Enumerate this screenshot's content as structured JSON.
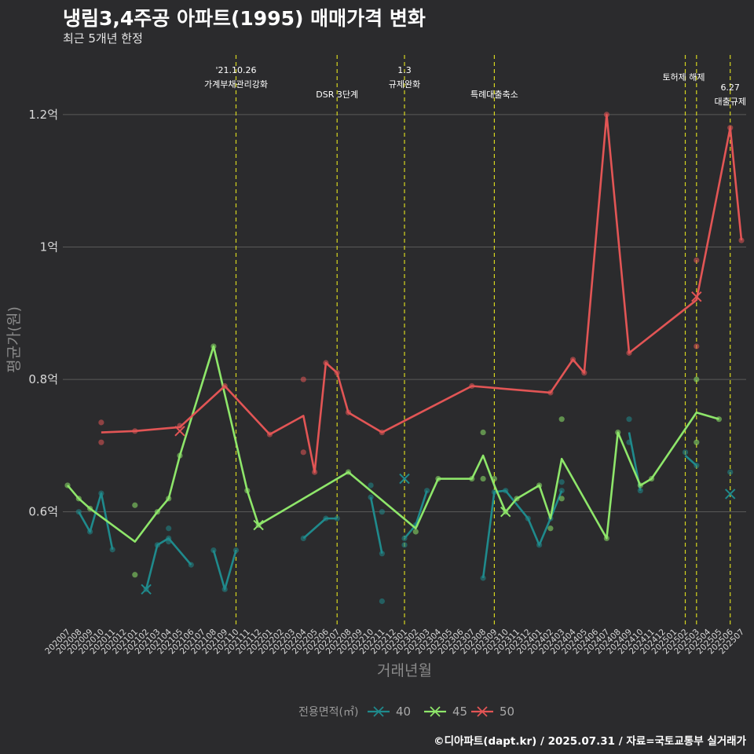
{
  "header": {
    "title": "냉림3,4주공 아파트(1995) 매매가격 변화",
    "subtitle": "최근 5개년 한정"
  },
  "caption": "©디아파트(dapt.kr) / 2025.07.31 / 자료=국토교통부 실거래가",
  "colors": {
    "background": "#2b2b2d",
    "grid": "#5a5a5a",
    "event_line": "#d6d61f",
    "s40": "#1f8a8c",
    "s45": "#8ee66a",
    "s50": "#e25555"
  },
  "chart_data": {
    "type": "line",
    "title": "냉림3,4주공 아파트(1995) 매매가격 변화",
    "subtitle": "최근 5개년 한정",
    "xlabel": "거래년월",
    "ylabel": "평균가(원)",
    "ylim": [
      0.43,
      1.29
    ],
    "y_ticks": [
      {
        "value": 0.6,
        "label": "0.6억"
      },
      {
        "value": 0.8,
        "label": "0.8억"
      },
      {
        "value": 1.0,
        "label": "1억"
      },
      {
        "value": 1.2,
        "label": "1.2억"
      }
    ],
    "categories": [
      "202007",
      "202008",
      "202009",
      "202010",
      "202011",
      "202012",
      "202101",
      "202102",
      "202103",
      "202104",
      "202105",
      "202106",
      "202107",
      "202108",
      "202109",
      "202110",
      "202111",
      "202112",
      "202201",
      "202202",
      "202203",
      "202204",
      "202205",
      "202206",
      "202207",
      "202208",
      "202209",
      "202210",
      "202211",
      "202212",
      "202301",
      "202302",
      "202303",
      "202304",
      "202305",
      "202306",
      "202307",
      "202308",
      "202309",
      "202310",
      "202311",
      "202312",
      "202401",
      "202402",
      "202403",
      "202404",
      "202405",
      "202406",
      "202407",
      "202408",
      "202409",
      "202410",
      "202411",
      "202412",
      "202501",
      "202502",
      "202503",
      "202504",
      "202505",
      "202506",
      "202507"
    ],
    "legend": {
      "title": "전용면적(㎡)",
      "position": "bottom"
    },
    "events": [
      {
        "x": "202110",
        "lines": [
          "'21.10.26",
          "가계부채관리강화"
        ]
      },
      {
        "x": "202207",
        "lines": [
          "DSR 3단계"
        ]
      },
      {
        "x": "202301",
        "lines": [
          "1.3",
          "규제완화"
        ]
      },
      {
        "x": "202309",
        "lines": [
          "특례대출축소"
        ]
      },
      {
        "x": "202502",
        "lines": [
          "토허제 해제"
        ]
      },
      {
        "x": "202503",
        "lines": []
      },
      {
        "x": "202506",
        "lines": [
          "6.27",
          "대출규제"
        ]
      }
    ],
    "series": [
      {
        "name": "40",
        "color": "#1f8a8c",
        "line": [
          [
            "202008",
            0.6
          ],
          [
            "202009",
            0.57
          ],
          [
            "202010",
            0.628
          ],
          [
            "202011",
            0.543
          ],
          null,
          [
            "202102",
            0.483
          ],
          [
            "202103",
            0.55
          ],
          [
            "202104",
            0.56
          ],
          [
            "202106",
            0.52
          ],
          null,
          [
            "202108",
            0.542
          ],
          [
            "202109",
            0.483
          ],
          [
            "202110",
            0.542
          ],
          null,
          [
            "202204",
            0.56
          ],
          [
            "202206",
            0.59
          ],
          [
            "202207",
            0.59
          ],
          null,
          [
            "202210",
            0.622
          ],
          [
            "202211",
            0.537
          ],
          null,
          [
            "202301",
            0.56
          ],
          [
            "202302",
            0.58
          ],
          [
            "202303",
            0.632
          ],
          null,
          [
            "202308",
            0.5
          ],
          [
            "202309",
            0.63
          ],
          [
            "202310",
            0.632
          ],
          [
            "202312",
            0.59
          ],
          [
            "202401",
            0.55
          ],
          [
            "202402",
            0.59
          ],
          [
            "202403",
            0.632
          ],
          null,
          [
            "202409",
            0.72
          ],
          [
            "202410",
            0.632
          ],
          null,
          [
            "202502",
            0.685
          ],
          [
            "202503",
            0.67
          ],
          null,
          [
            "202506",
            0.627
          ]
        ],
        "points": [
          [
            "202008",
            0.6
          ],
          [
            "202009",
            0.57
          ],
          [
            "202010",
            0.628
          ],
          [
            "202011",
            0.543
          ],
          [
            "202102",
            0.483
          ],
          [
            "202103",
            0.55
          ],
          [
            "202104",
            0.56
          ],
          [
            "202104",
            0.555
          ],
          [
            "202104",
            0.575
          ],
          [
            "202106",
            0.52
          ],
          [
            "202108",
            0.542
          ],
          [
            "202109",
            0.483
          ],
          [
            "202110",
            0.542
          ],
          [
            "202204",
            0.56
          ],
          [
            "202206",
            0.59
          ],
          [
            "202207",
            0.59
          ],
          [
            "202210",
            0.64
          ],
          [
            "202210",
            0.622
          ],
          [
            "202211",
            0.6
          ],
          [
            "202211",
            0.537
          ],
          [
            "202211",
            0.465
          ],
          [
            "202301",
            0.56
          ],
          [
            "202301",
            0.55
          ],
          [
            "202302",
            0.58
          ],
          [
            "202303",
            0.632
          ],
          [
            "202308",
            0.5
          ],
          [
            "202309",
            0.63
          ],
          [
            "202310",
            0.632
          ],
          [
            "202312",
            0.59
          ],
          [
            "202401",
            0.55
          ],
          [
            "202402",
            0.59
          ],
          [
            "202403",
            0.645
          ],
          [
            "202403",
            0.632
          ],
          [
            "202409",
            0.74
          ],
          [
            "202409",
            0.705
          ],
          [
            "202410",
            0.632
          ],
          [
            "202502",
            0.69
          ],
          [
            "202503",
            0.67
          ],
          [
            "202506",
            0.66
          ]
        ],
        "crosses": [
          [
            "202102",
            0.483
          ],
          [
            "202301",
            0.65
          ],
          [
            "202506",
            0.627
          ]
        ]
      },
      {
        "name": "45",
        "color": "#8ee66a",
        "line": [
          [
            "202007",
            0.64
          ],
          [
            "202008",
            0.62
          ],
          [
            "202009",
            0.605
          ],
          [
            "202101",
            0.555
          ],
          [
            "202103",
            0.6
          ],
          [
            "202104",
            0.62
          ],
          [
            "202105",
            0.685
          ],
          [
            "202108",
            0.85
          ],
          [
            "202110",
            0.705
          ],
          [
            "202111",
            0.632
          ],
          [
            "202112",
            0.58
          ],
          [
            "202208",
            0.66
          ],
          [
            "202302",
            0.575
          ],
          [
            "202304",
            0.65
          ],
          [
            "202307",
            0.65
          ],
          [
            "202308",
            0.685
          ],
          [
            "202309",
            0.64
          ],
          [
            "202310",
            0.6
          ],
          [
            "202311",
            0.62
          ],
          [
            "202401",
            0.64
          ],
          [
            "202402",
            0.59
          ],
          [
            "202403",
            0.68
          ],
          [
            "202407",
            0.56
          ],
          [
            "202408",
            0.72
          ],
          [
            "202410",
            0.64
          ],
          [
            "202411",
            0.65
          ],
          [
            "202503",
            0.75
          ],
          [
            "202505",
            0.74
          ]
        ],
        "points": [
          [
            "202007",
            0.64
          ],
          [
            "202008",
            0.62
          ],
          [
            "202009",
            0.605
          ],
          [
            "202101",
            0.61
          ],
          [
            "202101",
            0.505
          ],
          [
            "202103",
            0.6
          ],
          [
            "202104",
            0.62
          ],
          [
            "202105",
            0.685
          ],
          [
            "202108",
            0.85
          ],
          [
            "202111",
            0.632
          ],
          [
            "202112",
            0.58
          ],
          [
            "202208",
            0.66
          ],
          [
            "202302",
            0.57
          ],
          [
            "202304",
            0.65
          ],
          [
            "202307",
            0.65
          ],
          [
            "202308",
            0.72
          ],
          [
            "202308",
            0.65
          ],
          [
            "202309",
            0.65
          ],
          [
            "202310",
            0.6
          ],
          [
            "202311",
            0.62
          ],
          [
            "202401",
            0.64
          ],
          [
            "202402",
            0.575
          ],
          [
            "202403",
            0.74
          ],
          [
            "202403",
            0.62
          ],
          [
            "202407",
            0.56
          ],
          [
            "202408",
            0.72
          ],
          [
            "202410",
            0.64
          ],
          [
            "202411",
            0.65
          ],
          [
            "202503",
            0.8
          ],
          [
            "202503",
            0.705
          ],
          [
            "202505",
            0.74
          ]
        ],
        "crosses": [
          [
            "202112",
            0.58
          ],
          [
            "202310",
            0.6
          ]
        ]
      },
      {
        "name": "50",
        "color": "#e25555",
        "line": [
          [
            "202010",
            0.72
          ],
          [
            "202101",
            0.722
          ],
          [
            "202105",
            0.728
          ],
          [
            "202109",
            0.79
          ],
          [
            "202201",
            0.717
          ],
          [
            "202204",
            0.745
          ],
          [
            "202205",
            0.66
          ],
          [
            "202206",
            0.825
          ],
          [
            "202207",
            0.81
          ],
          [
            "202208",
            0.75
          ],
          [
            "202211",
            0.72
          ],
          [
            "202307",
            0.79
          ],
          [
            "202402",
            0.78
          ],
          [
            "202404",
            0.83
          ],
          [
            "202405",
            0.81
          ],
          [
            "202407",
            1.2
          ],
          [
            "202409",
            0.84
          ],
          [
            "202503",
            0.92
          ],
          [
            "202506",
            1.18
          ],
          [
            "202507",
            1.01
          ]
        ],
        "points": [
          [
            "202010",
            0.735
          ],
          [
            "202010",
            0.705
          ],
          [
            "202101",
            0.722
          ],
          [
            "202105",
            0.73
          ],
          [
            "202109",
            0.79
          ],
          [
            "202201",
            0.717
          ],
          [
            "202204",
            0.8
          ],
          [
            "202204",
            0.69
          ],
          [
            "202205",
            0.66
          ],
          [
            "202206",
            0.825
          ],
          [
            "202207",
            0.81
          ],
          [
            "202208",
            0.75
          ],
          [
            "202211",
            0.72
          ],
          [
            "202307",
            0.79
          ],
          [
            "202402",
            0.78
          ],
          [
            "202404",
            0.83
          ],
          [
            "202405",
            0.81
          ],
          [
            "202407",
            1.2
          ],
          [
            "202409",
            0.84
          ],
          [
            "202503",
            0.98
          ],
          [
            "202503",
            0.85
          ],
          [
            "202506",
            1.18
          ],
          [
            "202507",
            1.01
          ]
        ],
        "crosses": [
          [
            "202105",
            0.722
          ],
          [
            "202503",
            0.925
          ]
        ]
      }
    ]
  }
}
